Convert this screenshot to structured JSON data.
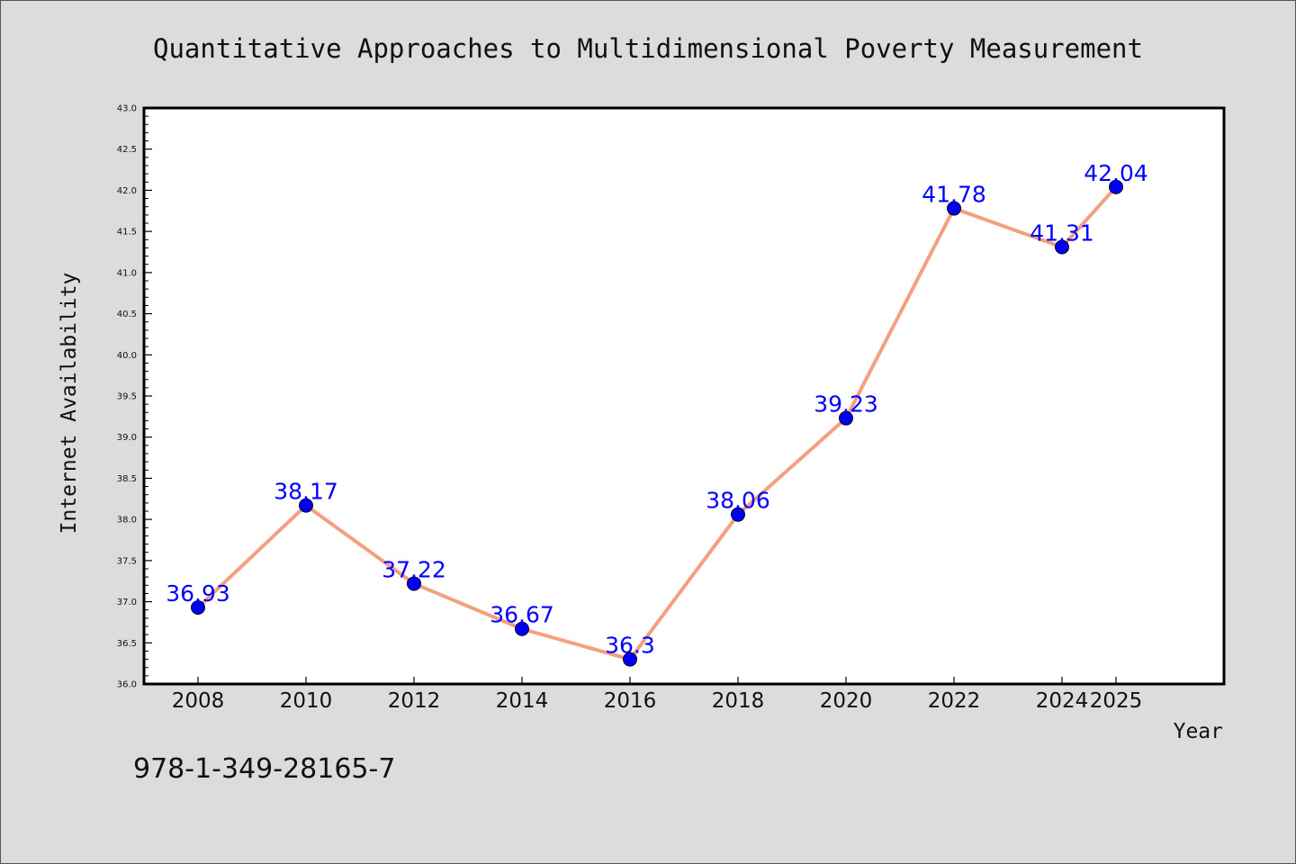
{
  "chart_data": {
    "type": "line",
    "title": "Quantitative Approaches to Multidimensional Poverty Measurement",
    "xlabel": "Year",
    "ylabel": "Internet Availability",
    "categories": [
      "2008",
      "2010",
      "2012",
      "2014",
      "2016",
      "2018",
      "2020",
      "2022",
      "2024",
      "2025"
    ],
    "values": [
      36.93,
      38.17,
      37.22,
      36.67,
      36.3,
      38.06,
      39.23,
      41.78,
      41.31,
      42.04
    ],
    "data_labels": [
      "36.93",
      "38.17",
      "37.22",
      "36.67",
      "36.3",
      "38.06",
      "39.23",
      "41.78",
      "41.31",
      "42.04"
    ],
    "ylim": [
      36.0,
      43.0
    ],
    "yticks": [
      "36.0",
      "36.5",
      "37.0",
      "37.5",
      "38.0",
      "38.5",
      "39.0",
      "39.5",
      "40.0",
      "40.5",
      "41.0",
      "41.5",
      "42.0",
      "42.5",
      "43.0"
    ],
    "grid": false,
    "legend": "none",
    "line_color": "#f4a07e",
    "marker_color": "#0000ee",
    "label_color": "#0000ff"
  },
  "footer": {
    "isbn": "978-1-349-28165-7"
  }
}
